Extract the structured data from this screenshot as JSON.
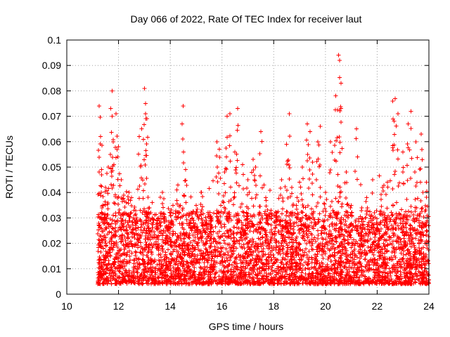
{
  "chart_data": {
    "type": "scatter",
    "title": "Day 066 of 2022, Rate Of TEC Index for receiver laut",
    "xlabel": "GPS time / hours",
    "ylabel": "ROTI / TECUs",
    "xlim": [
      10,
      24
    ],
    "ylim": [
      0,
      0.1
    ],
    "xticks": [
      10,
      12,
      14,
      16,
      18,
      20,
      22,
      24
    ],
    "xtick_labels": [
      "10",
      "12",
      "14",
      "16",
      "18",
      "20",
      "22",
      "24"
    ],
    "yticks": [
      0,
      0.01,
      0.02,
      0.03,
      0.04,
      0.05,
      0.06,
      0.07,
      0.08,
      0.09,
      0.1
    ],
    "ytick_labels": [
      "0",
      "0.01",
      "0.02",
      "0.03",
      "0.04",
      "0.05",
      "0.06",
      "0.07",
      "0.08",
      "0.09",
      "0.1"
    ],
    "grid": true,
    "marker": "+",
    "series": [
      {
        "name": "ROTI",
        "color": "#ff0000",
        "x": [
          11.25,
          11.3,
          11.35,
          11.4,
          11.5,
          11.6,
          11.7,
          11.75,
          11.8,
          11.9,
          12.0,
          12.1,
          12.2,
          12.3,
          12.4,
          12.5,
          12.6,
          12.7,
          12.8,
          12.9,
          13.0,
          13.05,
          13.1,
          13.2,
          13.3,
          13.5,
          13.7,
          13.9,
          14.1,
          14.3,
          14.5,
          14.6,
          14.8,
          15.0,
          15.2,
          15.4,
          15.6,
          15.8,
          15.9,
          16.1,
          16.2,
          16.3,
          16.5,
          16.6,
          16.8,
          17.0,
          17.2,
          17.3,
          17.5,
          17.7,
          17.9,
          18.1,
          18.3,
          18.5,
          18.6,
          18.7,
          18.9,
          19.1,
          19.3,
          19.4,
          19.5,
          19.7,
          19.8,
          20.0,
          20.2,
          20.4,
          20.5,
          20.55,
          20.6,
          20.8,
          21.0,
          21.2,
          21.4,
          21.6,
          21.8,
          22.0,
          22.2,
          22.4,
          22.6,
          22.7,
          22.8,
          23.0,
          23.2,
          23.3,
          23.5,
          23.7,
          23.9
        ],
        "y": [
          0.074,
          0.062,
          0.047,
          0.035,
          0.042,
          0.05,
          0.073,
          0.08,
          0.06,
          0.071,
          0.058,
          0.045,
          0.039,
          0.036,
          0.04,
          0.038,
          0.033,
          0.03,
          0.062,
          0.065,
          0.081,
          0.075,
          0.069,
          0.034,
          0.03,
          0.028,
          0.04,
          0.026,
          0.035,
          0.043,
          0.074,
          0.049,
          0.032,
          0.035,
          0.04,
          0.029,
          0.03,
          0.06,
          0.057,
          0.048,
          0.07,
          0.071,
          0.056,
          0.073,
          0.051,
          0.045,
          0.053,
          0.05,
          0.064,
          0.038,
          0.033,
          0.032,
          0.045,
          0.059,
          0.071,
          0.042,
          0.038,
          0.05,
          0.067,
          0.064,
          0.052,
          0.06,
          0.066,
          0.04,
          0.06,
          0.078,
          0.094,
          0.092,
          0.073,
          0.048,
          0.035,
          0.065,
          0.034,
          0.038,
          0.028,
          0.026,
          0.042,
          0.044,
          0.076,
          0.077,
          0.071,
          0.056,
          0.067,
          0.072,
          0.06,
          0.063,
          0.044
        ]
      }
    ],
    "bulk_band": {
      "x_start": 11.2,
      "x_end": 24.0,
      "y_range": [
        0.004,
        0.03
      ],
      "description_values": "dense scatter of ROTI values mostly between 0.005 and 0.03 TECU/s"
    }
  }
}
